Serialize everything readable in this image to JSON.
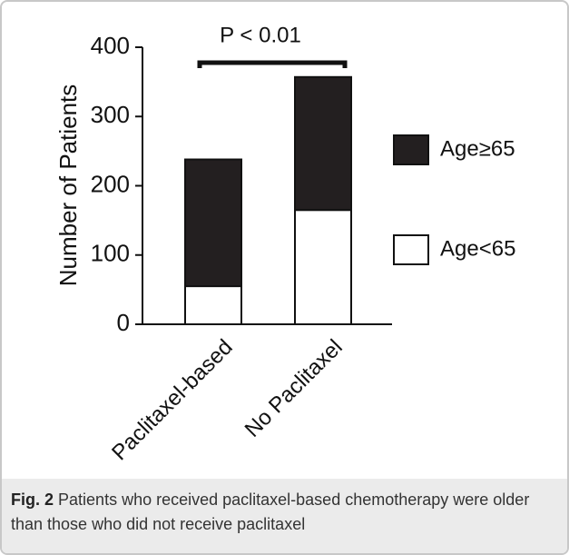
{
  "chart_data": {
    "type": "stacked_bar",
    "annotation": "P < 0.01",
    "y_label": "Number of Patients",
    "categories": [
      "Paclitaxel-based",
      "No Paclitaxel"
    ],
    "series": [
      {
        "name": "Age<65",
        "color": "#ffffff",
        "values": [
          55,
          165
        ]
      },
      {
        "name": "Age≥65",
        "color": "#231f20",
        "values": [
          183,
          192
        ]
      }
    ],
    "ylim": [
      0,
      400
    ],
    "yticks": [
      0,
      100,
      200,
      300,
      400
    ]
  },
  "caption": {
    "label": "Fig. 2",
    "text": "Patients who received paclitaxel-based chemotherapy were older than those who did not receive paclitaxel"
  }
}
